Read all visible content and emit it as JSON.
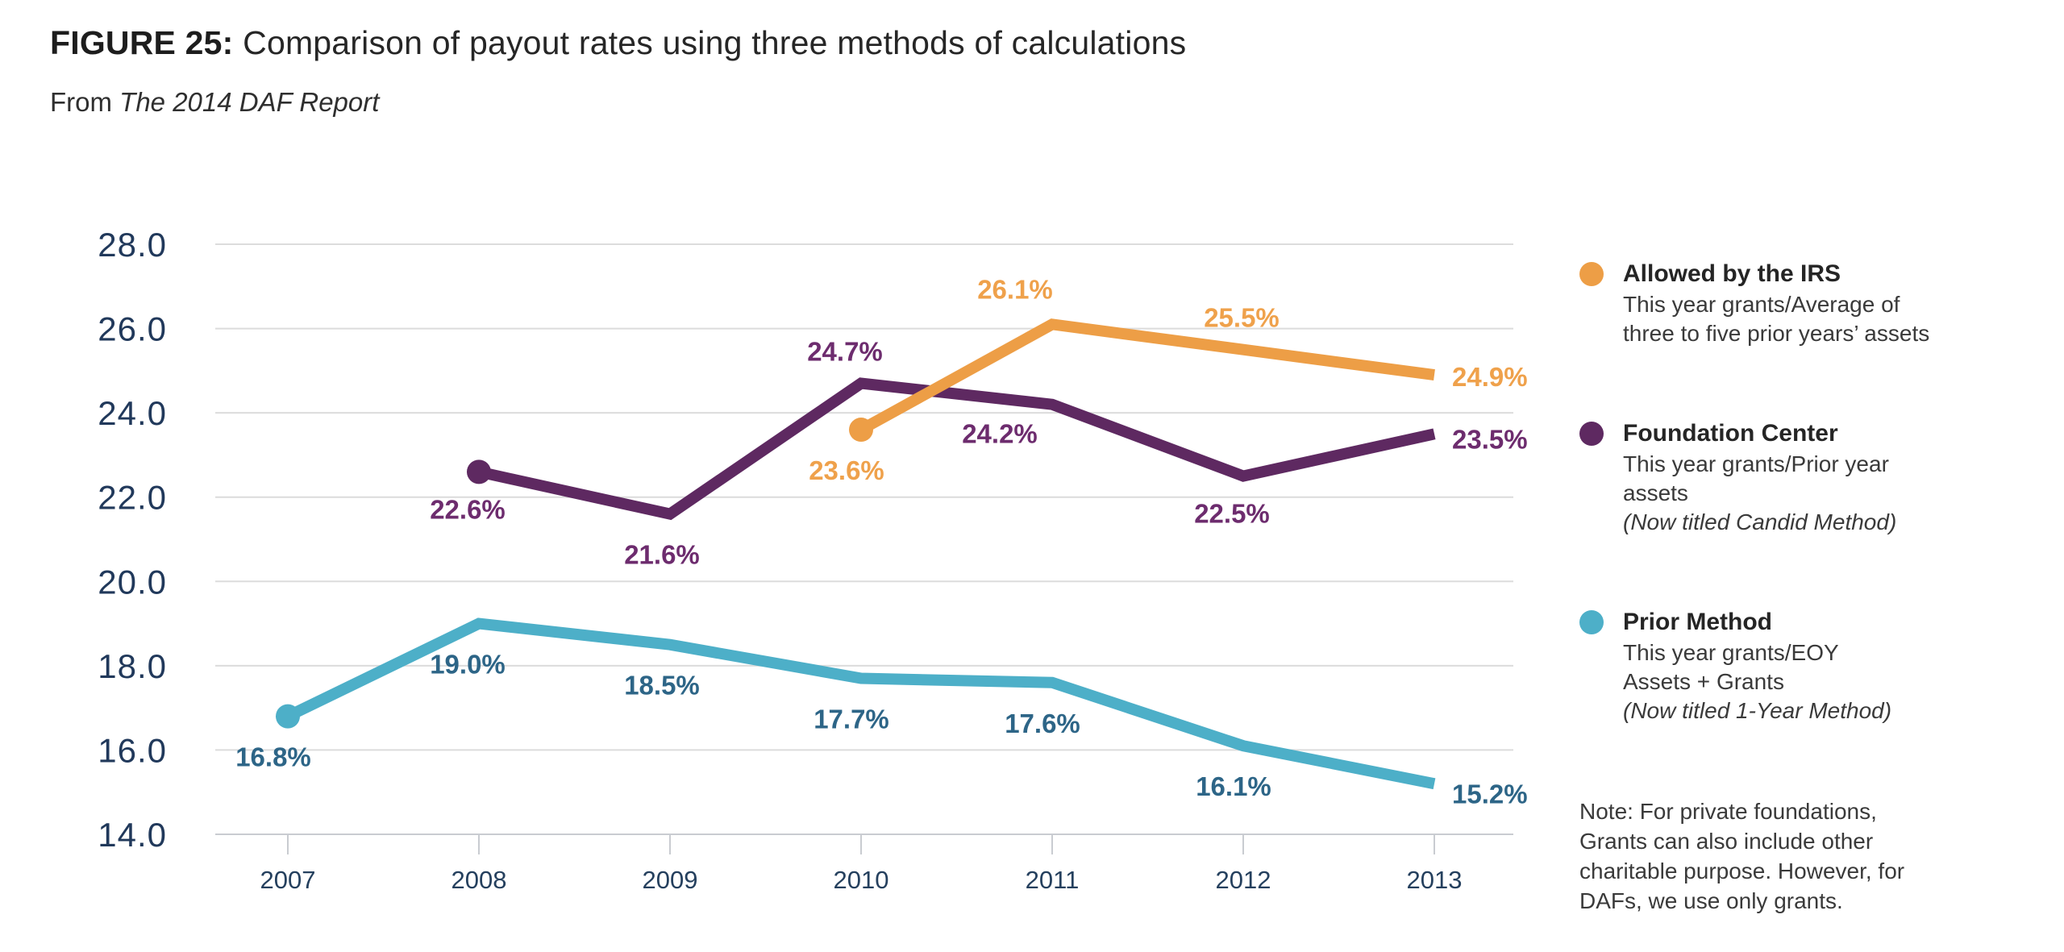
{
  "header": {
    "figure_label": "FIGURE 25:",
    "title_rest": "Comparison of payout rates using three methods of calculations",
    "subtitle_prefix": "From",
    "subtitle_italic": "The 2014 DAF Report"
  },
  "chart_data": {
    "type": "line",
    "title": "FIGURE 25: Comparison of payout rates using three methods of calculations",
    "subtitle": "From The 2014 DAF Report",
    "x_ticks": [
      2007,
      2008,
      2009,
      2010,
      2011,
      2012,
      2013
    ],
    "ylim": [
      14.0,
      28.0
    ],
    "ytick_step": 2.0,
    "grid": true,
    "legend_position": "right",
    "axis": {
      "y_labels": [
        "28.0",
        "26.0",
        "24.0",
        "22.0",
        "20.0",
        "18.0",
        "16.0",
        "14.0"
      ],
      "x_labels": [
        "2007",
        "2008",
        "2009",
        "2010",
        "2011",
        "2012",
        "2013"
      ]
    },
    "series": [
      {
        "name": "Allowed by the IRS",
        "color": "#ED9E46",
        "label_color": "#EFA14B",
        "start_dot": true,
        "points": [
          {
            "x": 2010,
            "y": 23.6,
            "label": "23.6%",
            "pos": "below",
            "dx": -18,
            "dy": 0
          },
          {
            "x": 2011,
            "y": 26.1,
            "label": "26.1%",
            "pos": "above",
            "dx": -46,
            "dy": -4
          },
          {
            "x": 2012,
            "y": 25.5,
            "label": "25.5%",
            "pos": "above",
            "dx": -2,
            "dy": 0
          },
          {
            "x": 2013,
            "y": 24.9,
            "label": "24.9%",
            "pos": "right",
            "dx": 0,
            "dy": 0
          }
        ]
      },
      {
        "name": "Foundation Center",
        "color": "#5E2961",
        "label_color": "#6D2C6E",
        "start_dot": true,
        "points": [
          {
            "x": 2008,
            "y": 22.6,
            "label": "22.6%",
            "pos": "below",
            "dx": -14,
            "dy": -4
          },
          {
            "x": 2009,
            "y": 21.6,
            "label": "21.6%",
            "pos": "below",
            "dx": -10,
            "dy": 0
          },
          {
            "x": 2010,
            "y": 24.7,
            "label": "24.7%",
            "pos": "above",
            "dx": -20,
            "dy": 0
          },
          {
            "x": 2011,
            "y": 24.2,
            "label": "24.2%",
            "pos": "below",
            "dx": -65,
            "dy": -14
          },
          {
            "x": 2012,
            "y": 22.5,
            "label": "22.5%",
            "pos": "below",
            "dx": -14,
            "dy": -4
          },
          {
            "x": 2013,
            "y": 23.5,
            "label": "23.5%",
            "pos": "right",
            "dx": 0,
            "dy": 4
          }
        ]
      },
      {
        "name": "Prior Method",
        "color": "#4DAFC8",
        "label_color": "#2D6587",
        "start_dot": true,
        "points": [
          {
            "x": 2007,
            "y": 16.8,
            "label": "16.8%",
            "pos": "below",
            "dx": -18,
            "dy": 0
          },
          {
            "x": 2008,
            "y": 19.0,
            "label": "19.0%",
            "pos": "below",
            "dx": -14,
            "dy": 0
          },
          {
            "x": 2009,
            "y": 18.5,
            "label": "18.5%",
            "pos": "below",
            "dx": -10,
            "dy": 0
          },
          {
            "x": 2010,
            "y": 17.7,
            "label": "17.7%",
            "pos": "below",
            "dx": -12,
            "dy": 0
          },
          {
            "x": 2011,
            "y": 17.6,
            "label": "17.6%",
            "pos": "below",
            "dx": -12,
            "dy": 0
          },
          {
            "x": 2012,
            "y": 16.1,
            "label": "16.1%",
            "pos": "below",
            "dx": -12,
            "dy": 0
          },
          {
            "x": 2013,
            "y": 15.2,
            "label": "15.2%",
            "pos": "right",
            "dx": 0,
            "dy": 10
          }
        ]
      }
    ],
    "colors": {
      "grid_line": "#DCDCDC",
      "axis_line": "#C9CCD1",
      "y_axis_text": "#21395B",
      "x_axis_text": "#25405E"
    }
  },
  "legend": {
    "items": [
      {
        "name": "Allowed by the IRS",
        "color": "#ED9E46",
        "desc": "This year grants/Average of\nthree to five prior years’ assets",
        "note": ""
      },
      {
        "name": "Foundation Center",
        "color": "#5E2961",
        "desc": "This year grants/Prior year assets",
        "note": "(Now titled Candid Method)"
      },
      {
        "name": "Prior Method",
        "color": "#4DAFC8",
        "desc": "This year grants/EOY\nAssets + Grants",
        "note": "(Now titled 1-Year Method)"
      }
    ],
    "note": "Note: For private foundations,\nGrants can also include other\ncharitable purpose. However, for\nDAFs, we use only grants."
  }
}
